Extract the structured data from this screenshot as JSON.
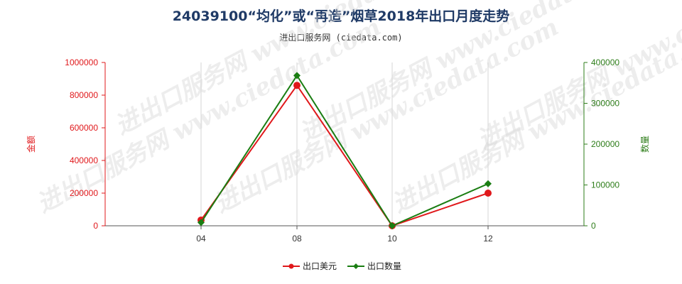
{
  "chart_data": {
    "type": "line",
    "title": "24039100“均化”或“再造”烟草2018年出口月度走势",
    "subtitle": "进出口服务网 (ciedata.com)",
    "watermark": "进出口服务网 www.ciedata.com",
    "categories": [
      "04",
      "08",
      "10",
      "12"
    ],
    "left_axis": {
      "label": "金额",
      "ticks": [
        "0",
        "200000",
        "400000",
        "600000",
        "800000",
        "1000000"
      ],
      "ylim": [
        0,
        1000000
      ],
      "color": "#e0181b"
    },
    "right_axis": {
      "label": "数量",
      "ticks": [
        "0",
        "100000",
        "200000",
        "300000",
        "400000"
      ],
      "ylim": [
        0,
        400000
      ],
      "color": "#2e7d1a"
    },
    "series": [
      {
        "name": "出口美元",
        "axis": "left",
        "color": "#e0181b",
        "marker": "circle",
        "values": [
          35000,
          860000,
          0,
          200000
        ]
      },
      {
        "name": "出口数量",
        "axis": "right",
        "color": "#1a7d12",
        "marker": "diamond",
        "values": [
          8000,
          368000,
          0,
          103000
        ]
      }
    ],
    "grid": "vertical",
    "legend_position": "bottom-center"
  }
}
